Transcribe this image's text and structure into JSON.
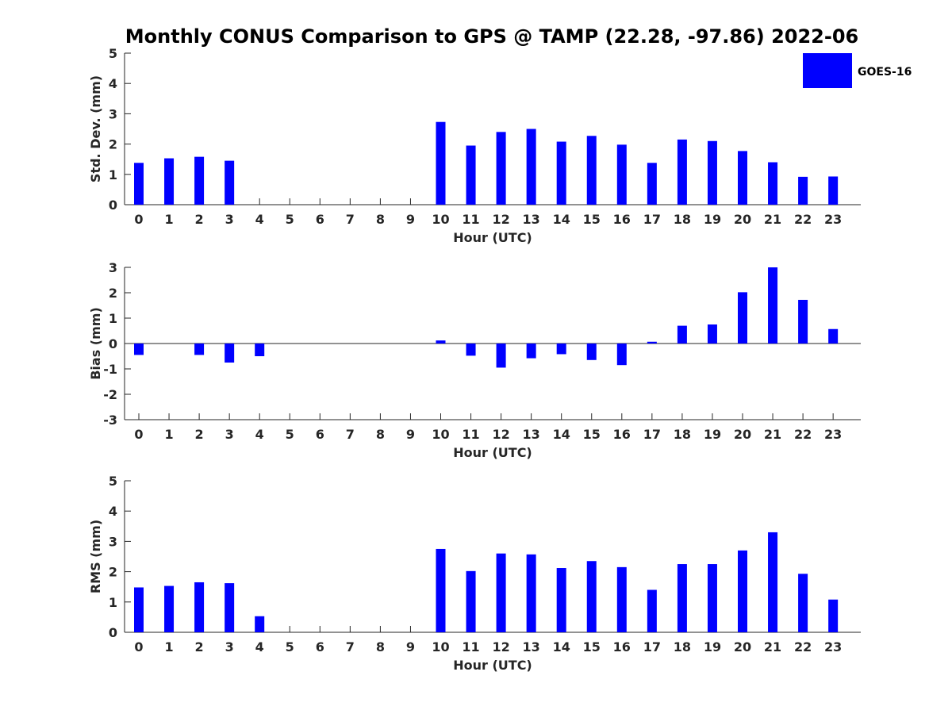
{
  "title": "Monthly CONUS Comparison to GPS @ TAMP (22.28, -97.86) 2022-06",
  "legend": {
    "label": "GOES-16",
    "color": "#0000ff"
  },
  "chart_data": [
    {
      "type": "bar",
      "xlabel": "Hour (UTC)",
      "ylabel": "Std. Dev. (mm)",
      "ylim": [
        0,
        5
      ],
      "yticks": [
        0,
        1,
        2,
        3,
        4,
        5
      ],
      "categories": [
        "0",
        "1",
        "2",
        "3",
        "4",
        "5",
        "6",
        "7",
        "8",
        "9",
        "10",
        "11",
        "12",
        "13",
        "14",
        "15",
        "16",
        "17",
        "18",
        "19",
        "20",
        "21",
        "22",
        "23"
      ],
      "series": [
        {
          "name": "GOES-16",
          "values": [
            1.38,
            1.53,
            1.58,
            1.45,
            0,
            0,
            0,
            0,
            0,
            0,
            2.73,
            1.95,
            2.4,
            2.5,
            2.08,
            2.27,
            1.98,
            1.38,
            2.15,
            2.1,
            1.77,
            1.4,
            0.92,
            0.93
          ]
        }
      ]
    },
    {
      "type": "bar",
      "xlabel": "Hour (UTC)",
      "ylabel": "Bias (mm)",
      "ylim": [
        -3,
        3
      ],
      "yticks": [
        -3,
        -2,
        -1,
        0,
        1,
        2,
        3
      ],
      "categories": [
        "0",
        "1",
        "2",
        "3",
        "4",
        "5",
        "6",
        "7",
        "8",
        "9",
        "10",
        "11",
        "12",
        "13",
        "14",
        "15",
        "16",
        "17",
        "18",
        "19",
        "20",
        "21",
        "22",
        "23"
      ],
      "series": [
        {
          "name": "GOES-16",
          "values": [
            -0.45,
            0,
            -0.45,
            -0.75,
            -0.5,
            0,
            0,
            0,
            0,
            0,
            0.12,
            -0.48,
            -0.95,
            -0.58,
            -0.42,
            -0.65,
            -0.85,
            0.07,
            0.7,
            0.75,
            2.02,
            3.0,
            1.72,
            0.57
          ]
        }
      ]
    },
    {
      "type": "bar",
      "xlabel": "Hour (UTC)",
      "ylabel": "RMS (mm)",
      "ylim": [
        0,
        5
      ],
      "yticks": [
        0,
        1,
        2,
        3,
        4,
        5
      ],
      "categories": [
        "0",
        "1",
        "2",
        "3",
        "4",
        "5",
        "6",
        "7",
        "8",
        "9",
        "10",
        "11",
        "12",
        "13",
        "14",
        "15",
        "16",
        "17",
        "18",
        "19",
        "20",
        "21",
        "22",
        "23"
      ],
      "series": [
        {
          "name": "GOES-16",
          "values": [
            1.48,
            1.53,
            1.65,
            1.62,
            0.53,
            0,
            0,
            0,
            0,
            0,
            2.75,
            2.02,
            2.6,
            2.57,
            2.12,
            2.35,
            2.15,
            1.4,
            2.25,
            2.25,
            2.7,
            3.3,
            1.93,
            1.08
          ]
        }
      ]
    }
  ]
}
